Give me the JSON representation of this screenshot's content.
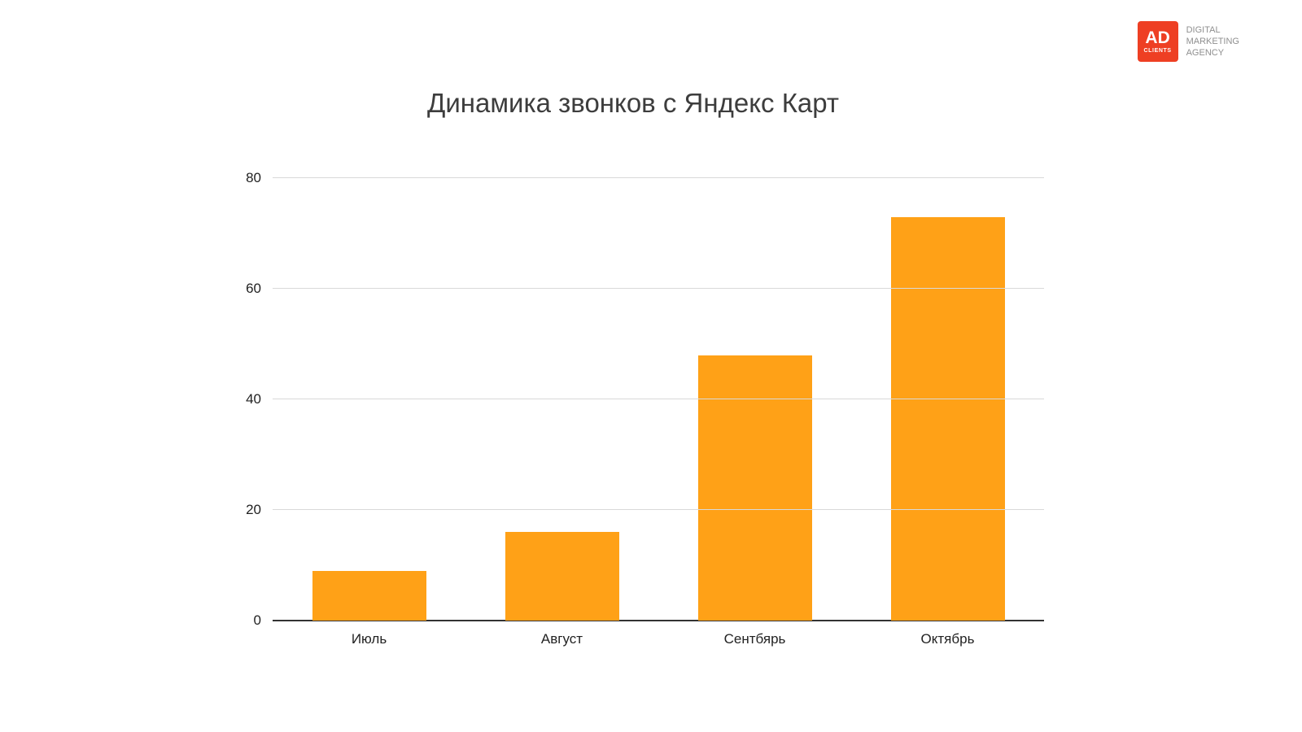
{
  "logo": {
    "ad": "AD",
    "clients": "CLIENTS",
    "bg_color": "#EE3F23",
    "tagline_lines": [
      "DIGITAL",
      "MARKETING",
      "AGENCY"
    ]
  },
  "chart_data": {
    "type": "bar",
    "title": "Динамика звонков с Яндекс Карт",
    "categories": [
      "Июль",
      "Август",
      "Сентбярь",
      "Октябрь"
    ],
    "values": [
      9,
      16,
      48,
      73
    ],
    "ylim": [
      0,
      80
    ],
    "yticks": [
      0,
      20,
      40,
      60,
      80
    ],
    "bar_color": "#FFA117",
    "grid": true,
    "legend": "none",
    "xlabel": "",
    "ylabel": ""
  }
}
